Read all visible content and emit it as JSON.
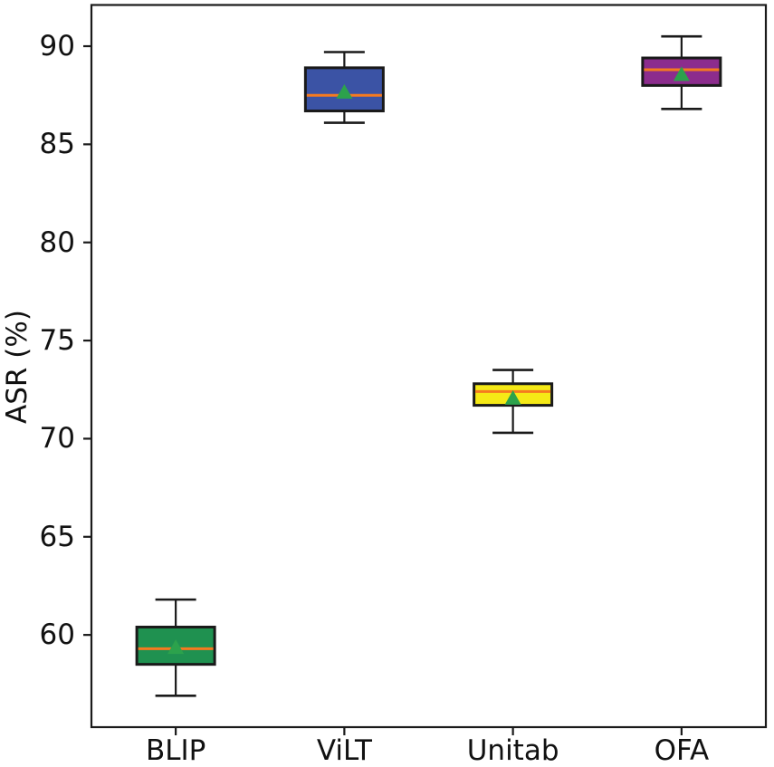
{
  "figure": {
    "background": "#ffffff",
    "title": ""
  },
  "chart_data": {
    "type": "box",
    "title": "",
    "xlabel": "",
    "ylabel": "ASR (%)",
    "categories": [
      "BLIP",
      "ViLT",
      "Unitab",
      "OFA"
    ],
    "ylim": [
      55.3,
      92.1
    ],
    "yticks": [
      60,
      65,
      70,
      75,
      80,
      85,
      90
    ],
    "grid": false,
    "legend": null,
    "series": [
      {
        "name": "BLIP",
        "color": "#1f9150",
        "whislo": 56.9,
        "q1": 58.5,
        "med": 59.3,
        "q3": 60.4,
        "whishi": 61.8,
        "mean": 59.4
      },
      {
        "name": "ViLT",
        "color": "#3b53a5",
        "whislo": 86.1,
        "q1": 86.7,
        "med": 87.5,
        "q3": 88.9,
        "whishi": 89.7,
        "mean": 87.7
      },
      {
        "name": "Unitab",
        "color": "#f5e916",
        "whislo": 70.3,
        "q1": 71.7,
        "med": 72.4,
        "q3": 72.8,
        "whishi": 73.5,
        "mean": 72.1
      },
      {
        "name": "OFA",
        "color": "#8c2c8d",
        "whislo": 86.8,
        "q1": 88.0,
        "med": 88.8,
        "q3": 89.4,
        "whishi": 90.5,
        "mean": 88.6
      }
    ],
    "style": {
      "frame_color": "#1a1a1a",
      "median_color": "#f57a20",
      "mean_color": "#2ca24c"
    }
  }
}
